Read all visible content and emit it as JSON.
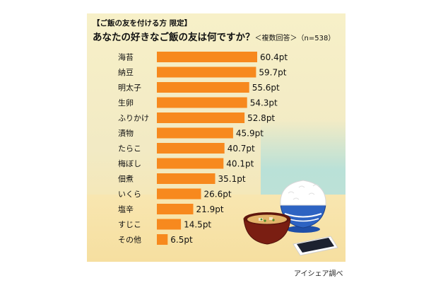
{
  "chart_data": {
    "type": "bar",
    "orientation": "horizontal",
    "title": "あなたの好きなご飯の友は何ですか？",
    "subtitle": "【ご飯の友を付ける方 限定】",
    "note": "＜複数回答＞（n=538）",
    "categories": [
      "海苔",
      "納豆",
      "明太子",
      "生卵",
      "ふりかけ",
      "漬物",
      "たらこ",
      "梅ぼし",
      "佃煮",
      "いくら",
      "塩辛",
      "すじこ",
      "その他"
    ],
    "values": [
      60.4,
      59.7,
      55.6,
      54.3,
      52.8,
      45.9,
      40.7,
      40.1,
      35.1,
      26.6,
      21.9,
      14.5,
      6.5
    ],
    "labels": [
      "60.4pt",
      "59.7pt",
      "55.6pt",
      "54.3pt",
      "52.8pt",
      "45.9pt",
      "40.7pt",
      "40.1pt",
      "35.1pt",
      "26.6pt",
      "21.9pt",
      "14.5pt",
      "6.5pt"
    ],
    "bar_color": "#f7891e",
    "xlim": [
      0,
      60.4
    ],
    "source": "アイシェア調べ"
  },
  "icons": [
    "rice-bowl-icon",
    "miso-soup-icon",
    "nori-icon"
  ]
}
